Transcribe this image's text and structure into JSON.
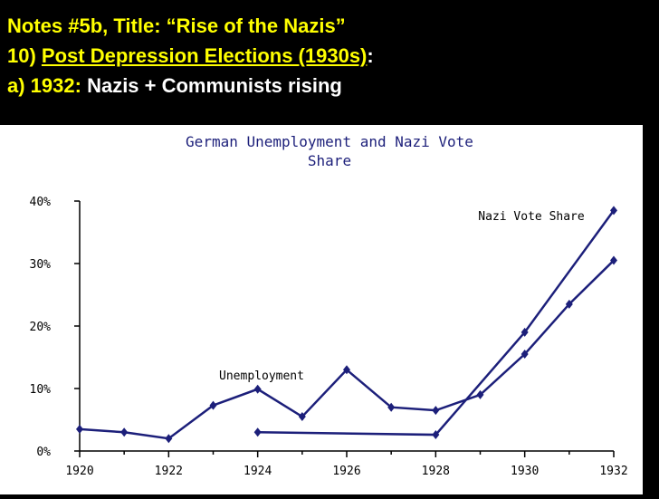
{
  "slide": {
    "line1": {
      "prefix": "Notes #5b, Title: ",
      "title": "“Rise of the Nazis”"
    },
    "line2": {
      "number": "10) ",
      "topic": "Post Depression Elections (1930s)",
      "suffix": ":"
    },
    "line3": {
      "label": "a) 1932:",
      "text": " Nazis + Communists rising"
    }
  },
  "chart_data": {
    "type": "line",
    "title": "German Unemployment and Nazi Vote Share",
    "title_lines": [
      "German Unemployment and Nazi Vote",
      "Share"
    ],
    "xlim": [
      1920,
      1932
    ],
    "ylim": [
      0,
      40
    ],
    "x_ticks": [
      "1920",
      "1922",
      "1924",
      "1926",
      "1928",
      "1930",
      "1932"
    ],
    "y_ticks": [
      "0%",
      "10%",
      "20%",
      "30%",
      "40%"
    ],
    "grid": false,
    "series": [
      {
        "name": "Unemployment",
        "x": [
          1920,
          1921,
          1922,
          1923,
          1924,
          1925,
          1926,
          1927,
          1928,
          1929,
          1930,
          1931,
          1932
        ],
        "values": [
          3.5,
          3.0,
          2.0,
          7.3,
          9.9,
          5.5,
          13.0,
          7.0,
          6.5,
          9.0,
          15.5,
          23.5,
          30.5
        ]
      },
      {
        "name": "Nazi Vote Share",
        "x": [
          1924,
          1928,
          1930,
          1932
        ],
        "values": [
          3.0,
          2.6,
          19.0,
          38.5
        ]
      }
    ],
    "annotations": [
      {
        "text": "Nazi Vote Share"
      },
      {
        "text": "Unemployment"
      }
    ],
    "line_color": "#1c1f7a"
  }
}
